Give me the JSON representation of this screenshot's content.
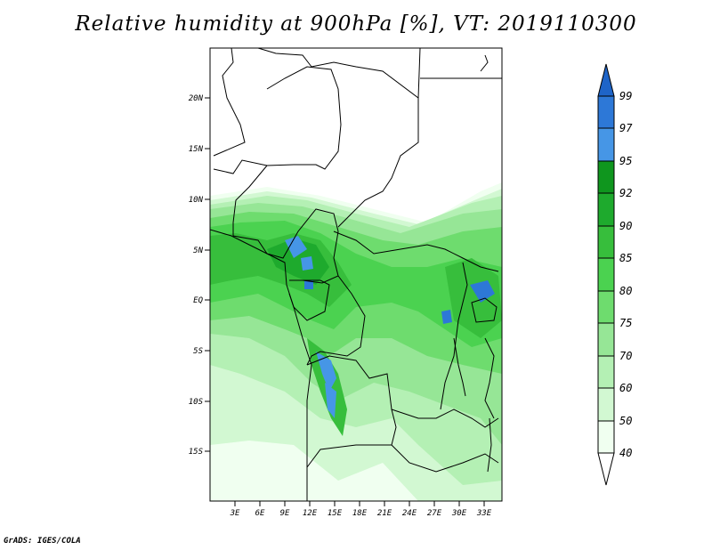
{
  "title": "Relative humidity at 900hPa [%], VT: 2019110300",
  "credit": "GrADS: IGES/COLA",
  "map": {
    "lat_labels": [
      "20N",
      "15N",
      "10N",
      "5N",
      "EQ",
      "5S",
      "10S",
      "15S"
    ],
    "lon_labels": [
      "3E",
      "6E",
      "9E",
      "12E",
      "15E",
      "18E",
      "21E",
      "24E",
      "27E",
      "30E",
      "33E"
    ]
  },
  "colorbar": {
    "levels": [
      "99",
      "97",
      "95",
      "92",
      "90",
      "85",
      "80",
      "75",
      "70",
      "60",
      "50",
      "40"
    ],
    "colors": {
      "over": "#1e64c8",
      "97_99": "#2d78d7",
      "95_97": "#4696e6",
      "92_95": "#0f961e",
      "90_92": "#1eaa2d",
      "85_90": "#37be3c",
      "80_85": "#4bd250",
      "75_80": "#6edc6e",
      "70_75": "#96e696",
      "60_70": "#b4f0b4",
      "50_60": "#d2f8d2",
      "40_50": "#f0fff0",
      "under": "#ffffff"
    }
  }
}
